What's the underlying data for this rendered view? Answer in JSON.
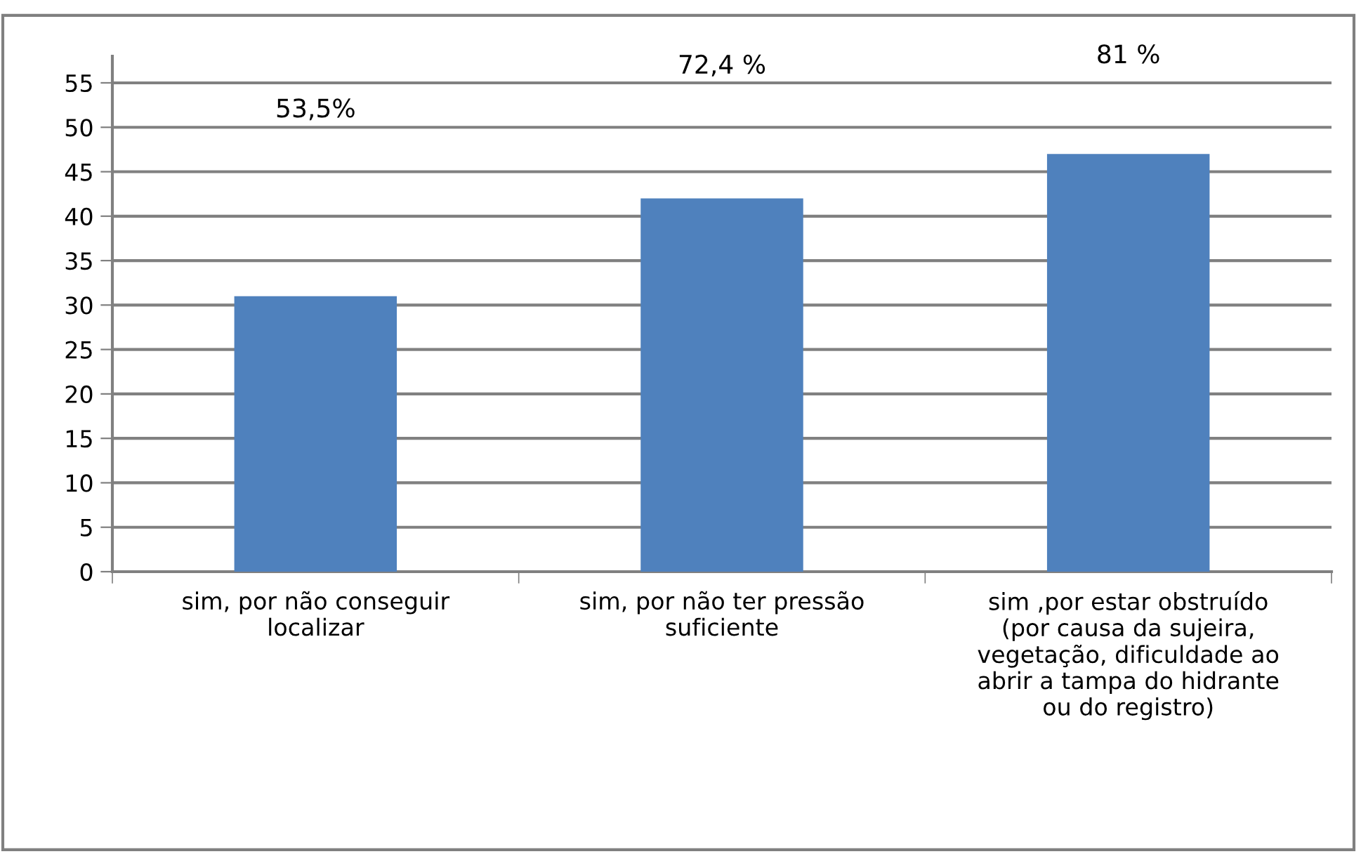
{
  "chart_data": {
    "type": "bar",
    "categories": [
      "sim, por não conseguir\nlocalizar",
      "sim, por não ter pressão\nsuficiente",
      "sim ,por estar obstruído\n(por causa da sujeira,\nvegetação, dificuldade ao\nabrir a tampa do hidrante\nou do registro)"
    ],
    "values": [
      31,
      42,
      47
    ],
    "color": "#4f81bd",
    "ylim": [
      0,
      58
    ],
    "yticks": [
      0,
      5,
      10,
      15,
      20,
      25,
      30,
      35,
      40,
      45,
      50,
      55
    ],
    "grid": "y",
    "annotations": [
      "53,5%",
      "72,4 %",
      "81 %"
    ]
  }
}
